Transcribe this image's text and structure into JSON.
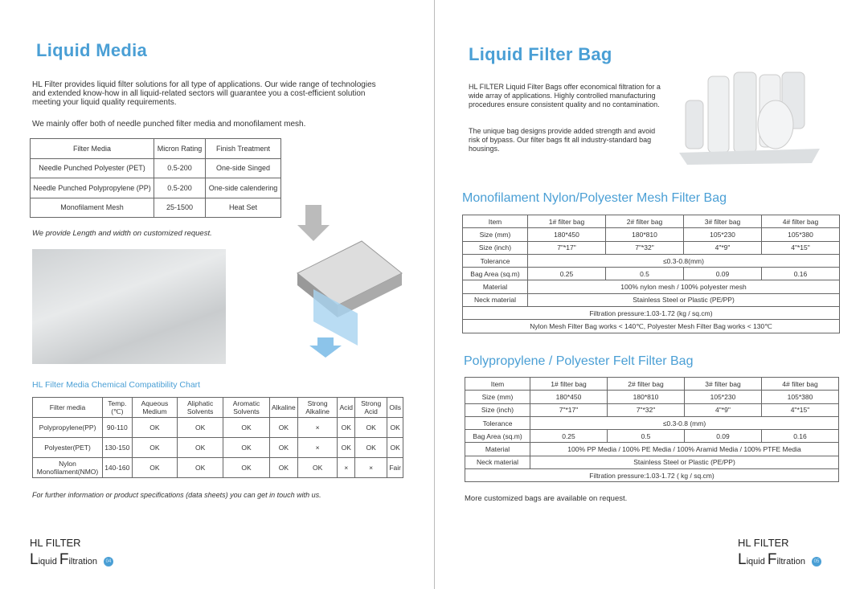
{
  "left": {
    "title": "Liquid Media",
    "intro": "HL Filter provides liquid filter solutions for all type of applications. Our wide range of technologies and extended know-how in all liquid-related sectors will guarantee you a cost-efficient solution meeting your liquid quality requirements.",
    "offer": "We mainly offer both of needle punched filter media and monofilament mesh.",
    "media_table": {
      "headers": [
        "Filter Media",
        "Micron Rating",
        "Finish Treatment"
      ],
      "rows": [
        [
          "Needle Punched Polyester (PET)",
          "0.5-200",
          "One-side Singed"
        ],
        [
          "Needle Punched Polypropylene (PP)",
          "0.5-200",
          "One-side calendering"
        ],
        [
          "Monofilament Mesh",
          "25-1500",
          "Heat Set"
        ]
      ]
    },
    "custom_note": "We provide Length and width on customized request.",
    "chart_title": "HL Filter Media Chemical Compatibility Chart",
    "chem_table": {
      "headers": [
        "Filter media",
        "Temp.(℃)",
        "Aqueous Medium",
        "Aliphatic Solvents",
        "Aromatic Solvents",
        "Alkaline",
        "Strong Alkaline",
        "Acid",
        "Strong Acid",
        "Oils"
      ],
      "rows": [
        [
          "Polypropylene(PP)",
          "90-110",
          "OK",
          "OK",
          "OK",
          "OK",
          "×",
          "OK",
          "OK",
          "OK"
        ],
        [
          "Polyester(PET)",
          "130-150",
          "OK",
          "OK",
          "OK",
          "OK",
          "×",
          "OK",
          "OK",
          "OK"
        ],
        [
          "Nylon Monofilament(NMO)",
          "140-160",
          "OK",
          "OK",
          "OK",
          "OK",
          "OK",
          "×",
          "×",
          "Fair"
        ]
      ]
    },
    "footer_note": "For further information or product specifications (data sheets) you can get in touch with us.",
    "brand": "HL FILTER",
    "tag_l": "L",
    "tag_iquid": "iquid ",
    "tag_f": "F",
    "tag_iltration": "iltration",
    "page": "04"
  },
  "right": {
    "title": "Liquid Filter Bag",
    "p1": "HL FILTER Liquid Filter Bags offer economical filtration for a wide array of applications. Highly controlled manufacturing procedures ensure consistent quality and no contamination.",
    "p2": "The unique bag designs provide added strength and avoid risk of bypass. Our filter bags fit all industry-standard bag housings.",
    "mesh_title": "Monofilament Nylon/Polyester Mesh Filter Bag",
    "mesh": {
      "headers": [
        "Item",
        "1#  filter bag",
        "2#  filter bag",
        "3#  filter bag",
        "4#  filter bag"
      ],
      "size_mm": [
        "Size (mm)",
        "180*450",
        "180*810",
        "105*230",
        "105*380"
      ],
      "size_inch": [
        "Size (inch)",
        "7\"*17\"",
        "7\"*32\"",
        "4\"*9\"",
        "4\"*15\""
      ],
      "tolerance": [
        "Tolerance",
        "≤0.3-0.8(mm)"
      ],
      "area": [
        "Bag Area (sq.m)",
        "0.25",
        "0.5",
        "0.09",
        "0.16"
      ],
      "material": [
        "Material",
        "100% nylon mesh / 100% polyester mesh"
      ],
      "neck": [
        "Neck material",
        "Stainless Steel or Plastic (PE/PP)"
      ],
      "pressure": "Filtration pressure:1.03-1.72 (kg / sq.cm)",
      "temp": "Nylon Mesh Filter Bag works < 140℃, Polyester Mesh Filter Bag works < 130℃"
    },
    "felt_title": "Polypropylene / Polyester Felt Filter Bag",
    "felt": {
      "headers": [
        "Item",
        "1#  filter bag",
        "2#  filter bag",
        "3#  filter bag",
        "4#  filter bag"
      ],
      "size_mm": [
        "Size (mm)",
        "180*450",
        "180*810",
        "105*230",
        "105*380"
      ],
      "size_inch": [
        "Size (inch)",
        "7\"*17\"",
        "7\"*32\"",
        "4\"*9\"",
        "4\"*15\""
      ],
      "tolerance": [
        "Tolerance",
        "≤0.3-0.8 (mm)"
      ],
      "area": [
        "Bag Area (sq.m)",
        "0.25",
        "0.5",
        "0.09",
        "0.16"
      ],
      "material": [
        "Material",
        "100% PP Media / 100% PE Media / 100% Aramid Media / 100% PTFE Media"
      ],
      "neck": [
        "Neck material",
        "Stainless Steel or Plastic (PE/PP)"
      ],
      "pressure": "Filtration pressure:1.03-1.72 ( kg / sq.cm)"
    },
    "more": "More customized bags are available on request.",
    "brand": "HL FILTER",
    "tag_l": "L",
    "tag_iquid": "iquid ",
    "tag_f": "F",
    "tag_iltration": "iltration",
    "page": "05"
  }
}
